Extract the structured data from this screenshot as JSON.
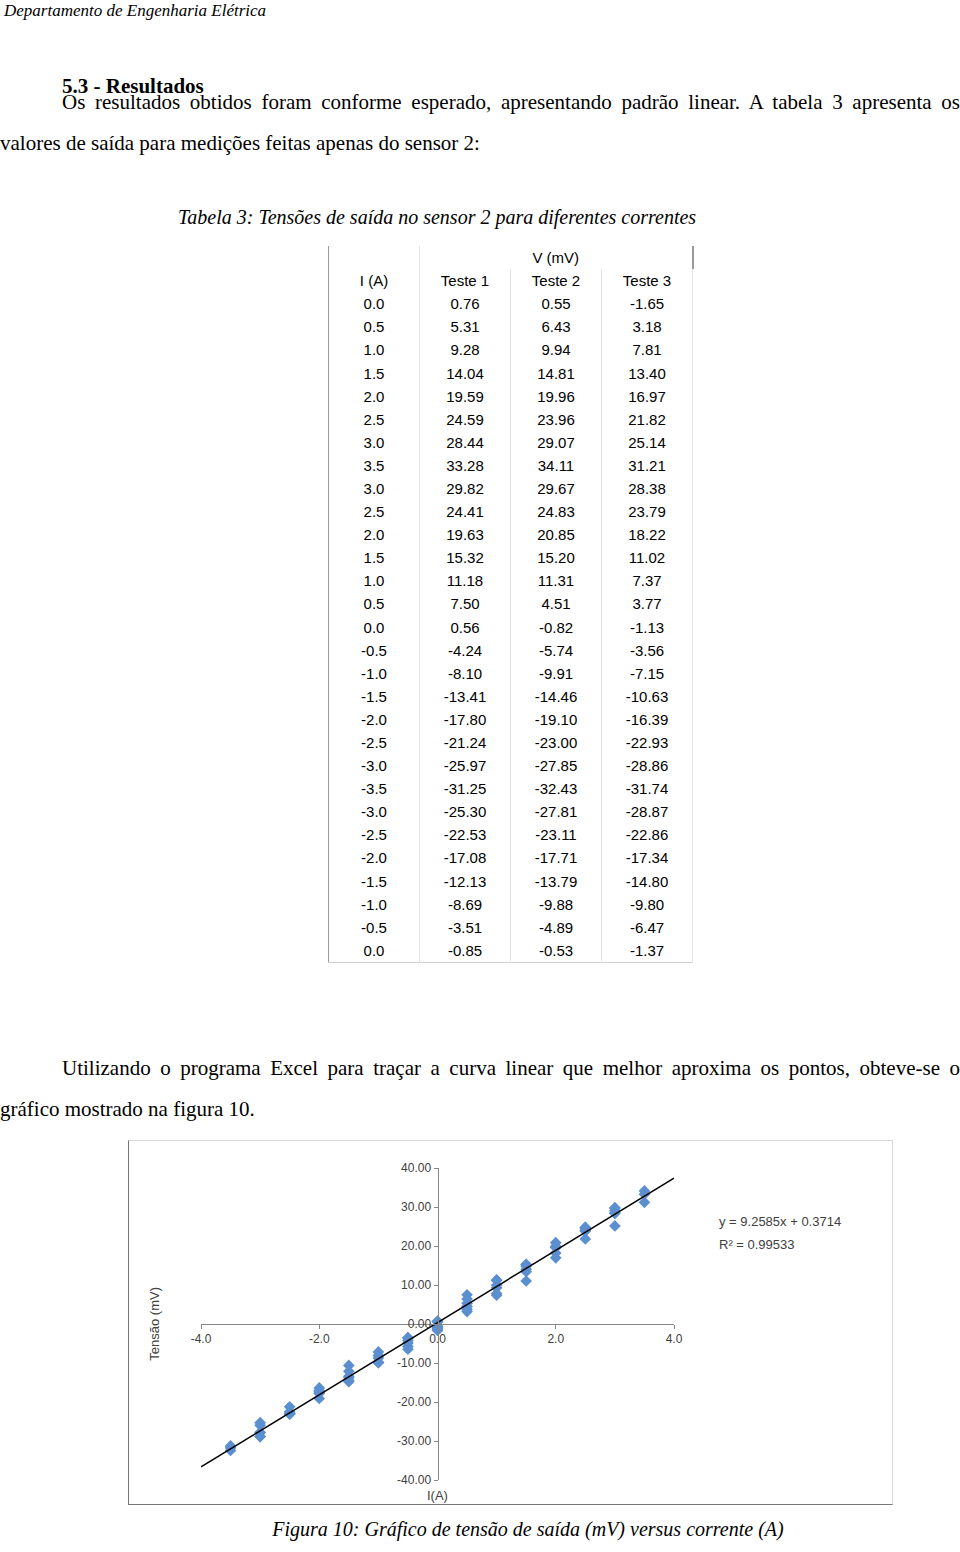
{
  "header": "Departamento de Engenharia Elétrica",
  "section_title": "5.3 - Resultados",
  "paragraphs": [
    "Os resultados obtidos foram conforme esperado, apresentando padrão linear. A tabela 3 apresenta os valores de saída para medições feitas apenas do sensor 2:",
    "Utilizando o programa Excel para traçar a curva linear que melhor aproxima os pontos, obteve-se o gráfico mostrado na figura 10."
  ],
  "table": {
    "caption": "Tabela 3: Tensões de saída no sensor 2 para diferentes correntes",
    "group_header": "V (mV)",
    "columns": [
      "I (A)",
      "Teste 1",
      "Teste 2",
      "Teste 3"
    ],
    "rows": [
      [
        "0.0",
        "0.76",
        "0.55",
        "-1.65"
      ],
      [
        "0.5",
        "5.31",
        "6.43",
        "3.18"
      ],
      [
        "1.0",
        "9.28",
        "9.94",
        "7.81"
      ],
      [
        "1.5",
        "14.04",
        "14.81",
        "13.40"
      ],
      [
        "2.0",
        "19.59",
        "19.96",
        "16.97"
      ],
      [
        "2.5",
        "24.59",
        "23.96",
        "21.82"
      ],
      [
        "3.0",
        "28.44",
        "29.07",
        "25.14"
      ],
      [
        "3.5",
        "33.28",
        "34.11",
        "31.21"
      ],
      [
        "3.0",
        "29.82",
        "29.67",
        "28.38"
      ],
      [
        "2.5",
        "24.41",
        "24.83",
        "23.79"
      ],
      [
        "2.0",
        "19.63",
        "20.85",
        "18.22"
      ],
      [
        "1.5",
        "15.32",
        "15.20",
        "11.02"
      ],
      [
        "1.0",
        "11.18",
        "11.31",
        "7.37"
      ],
      [
        "0.5",
        "7.50",
        "4.51",
        "3.77"
      ],
      [
        "0.0",
        "0.56",
        "-0.82",
        "-1.13"
      ],
      [
        "-0.5",
        "-4.24",
        "-5.74",
        "-3.56"
      ],
      [
        "-1.0",
        "-8.10",
        "-9.91",
        "-7.15"
      ],
      [
        "-1.5",
        "-13.41",
        "-14.46",
        "-10.63"
      ],
      [
        "-2.0",
        "-17.80",
        "-19.10",
        "-16.39"
      ],
      [
        "-2.5",
        "-21.24",
        "-23.00",
        "-22.93"
      ],
      [
        "-3.0",
        "-25.97",
        "-27.85",
        "-28.86"
      ],
      [
        "-3.5",
        "-31.25",
        "-32.43",
        "-31.74"
      ],
      [
        "-3.0",
        "-25.30",
        "-27.81",
        "-28.87"
      ],
      [
        "-2.5",
        "-22.53",
        "-23.11",
        "-22.86"
      ],
      [
        "-2.0",
        "-17.08",
        "-17.71",
        "-17.34"
      ],
      [
        "-1.5",
        "-12.13",
        "-13.79",
        "-14.80"
      ],
      [
        "-1.0",
        "-8.69",
        "-9.88",
        "-9.80"
      ],
      [
        "-0.5",
        "-3.51",
        "-4.89",
        "-6.47"
      ],
      [
        "0.0",
        "-0.85",
        "-0.53",
        "-1.37"
      ]
    ]
  },
  "chart_data": {
    "type": "scatter",
    "x_label": "I(A)",
    "y_label": "Tensão (mV)",
    "x": [
      0,
      0.5,
      1,
      1.5,
      2,
      2.5,
      3,
      3.5,
      3,
      2.5,
      2,
      1.5,
      1,
      0.5,
      0,
      -0.5,
      -1,
      -1.5,
      -2,
      -2.5,
      -3,
      -3.5,
      -3,
      -2.5,
      -2,
      -1.5,
      -1,
      -0.5,
      0
    ],
    "series": [
      {
        "color": "#5b8fd0",
        "values": [
          0.76,
          5.31,
          9.28,
          14.04,
          19.59,
          24.59,
          28.44,
          33.28,
          29.82,
          24.41,
          19.63,
          15.32,
          11.18,
          7.5,
          0.56,
          -4.24,
          -8.1,
          -13.41,
          -17.8,
          -21.24,
          -25.97,
          -31.25,
          -25.3,
          -22.53,
          -17.08,
          -12.13,
          -8.69,
          -3.51,
          -0.85
        ]
      },
      {
        "color": "#5b8fd0",
        "values": [
          0.55,
          6.43,
          9.94,
          14.81,
          19.96,
          23.96,
          29.07,
          34.11,
          29.67,
          24.83,
          20.85,
          15.2,
          11.31,
          4.51,
          -0.82,
          -5.74,
          -9.91,
          -14.46,
          -19.1,
          -23.0,
          -27.85,
          -32.43,
          -27.81,
          -23.11,
          -17.71,
          -13.79,
          -9.88,
          -4.89,
          -0.53
        ]
      },
      {
        "color": "#5b8fd0",
        "values": [
          -1.65,
          3.18,
          7.81,
          13.4,
          16.97,
          21.82,
          25.14,
          31.21,
          28.38,
          23.79,
          18.22,
          11.02,
          7.37,
          3.77,
          -1.13,
          -3.56,
          -7.15,
          -10.63,
          -16.39,
          -22.93,
          -28.86,
          -31.74,
          -28.87,
          -22.86,
          -17.34,
          -14.8,
          -9.8,
          -6.47,
          -1.37
        ]
      }
    ],
    "marker": "diamond",
    "trendline": {
      "slope": 9.2585,
      "intercept": 0.3714,
      "color": "#000000"
    },
    "annotations": [
      "y = 9.2585x + 0.3714",
      "R² = 0.99533"
    ],
    "xlim": [
      -4,
      4
    ],
    "xticks": [
      {
        "value": -4,
        "label": "-4.0"
      },
      {
        "value": -2,
        "label": "-2.0"
      },
      {
        "value": 0,
        "label": "0.0"
      },
      {
        "value": 2,
        "label": "2.0"
      },
      {
        "value": 4,
        "label": "4.0"
      }
    ],
    "ylim": [
      -40,
      40
    ],
    "yticks": [
      {
        "value": -40,
        "label": "-40.00"
      },
      {
        "value": -30,
        "label": "-30.00"
      },
      {
        "value": -20,
        "label": "-20.00"
      },
      {
        "value": -10,
        "label": "-10.00"
      },
      {
        "value": 0,
        "label": "0.00"
      },
      {
        "value": 10,
        "label": "10.00"
      },
      {
        "value": 20,
        "label": "20.00"
      },
      {
        "value": 30,
        "label": "30.00"
      },
      {
        "value": 40,
        "label": "40.00"
      }
    ],
    "grid": false
  },
  "figure_caption": "Figura 10: Gráfico de tensão de saída (mV) versus corrente (A)"
}
